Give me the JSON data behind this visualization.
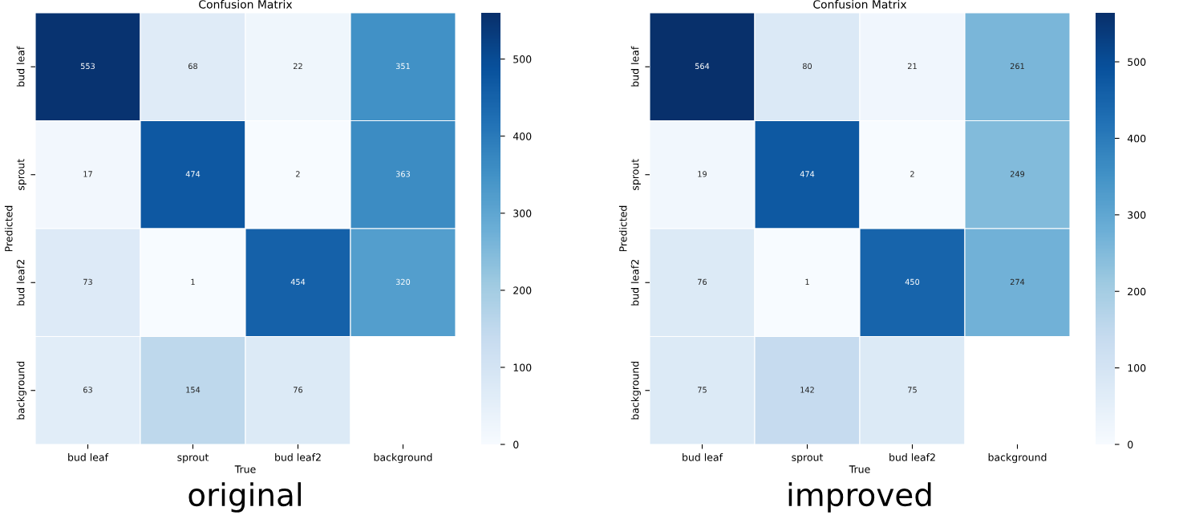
{
  "chart_data": [
    {
      "type": "heatmap",
      "title": "Confusion Matrix",
      "xlabel": "True",
      "ylabel": "Predicted",
      "categories": [
        "bud leaf",
        "sprout",
        "bud leaf2",
        "background"
      ],
      "y_categories": [
        "bud leaf",
        "sprout",
        "bud leaf2",
        "background"
      ],
      "cells": [
        [
          553,
          68,
          22,
          351
        ],
        [
          17,
          474,
          2,
          363
        ],
        [
          73,
          1,
          454,
          320
        ],
        [
          63,
          154,
          76,
          null
        ]
      ],
      "clim": [
        0,
        560
      ],
      "cticks": [
        0,
        100,
        200,
        300,
        400,
        500
      ],
      "data_labels": true,
      "annotations": [
        "original"
      ]
    },
    {
      "type": "heatmap",
      "title": "Confusion Matrix",
      "xlabel": "True",
      "ylabel": "Predicted",
      "categories": [
        "bud leaf",
        "sprout",
        "bud leaf2",
        "background"
      ],
      "y_categories": [
        "bud leaf",
        "sprout",
        "bud leaf2",
        "background"
      ],
      "cells": [
        [
          564,
          80,
          21,
          261
        ],
        [
          19,
          474,
          2,
          249
        ],
        [
          76,
          1,
          450,
          274
        ],
        [
          75,
          142,
          75,
          null
        ]
      ],
      "clim": [
        0,
        564
      ],
      "cticks": [
        0,
        100,
        200,
        300,
        400,
        500
      ],
      "data_labels": true,
      "annotations": [
        "improved"
      ]
    }
  ]
}
